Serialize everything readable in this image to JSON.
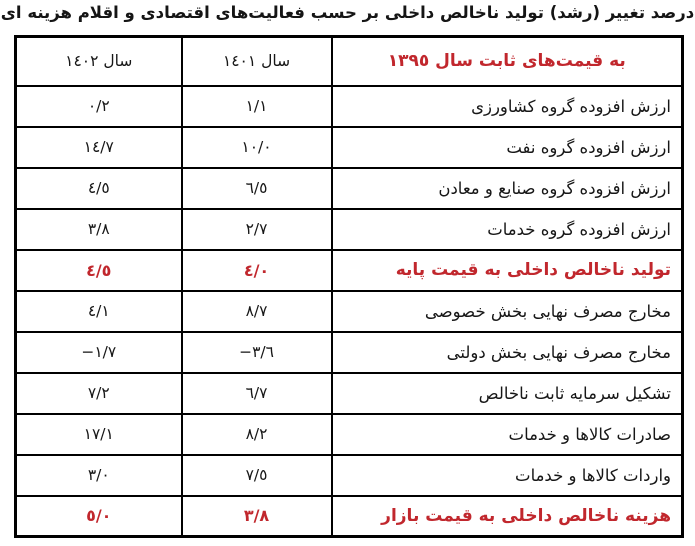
{
  "title": "درصد تغییر (رشد) تولید ناخالص داخلی بر حسب فعالیت‌های اقتصادی و اقلام هزینه ای",
  "colors": {
    "accent_red": "#c1272d",
    "text_black": "#171717",
    "border_black": "#000000",
    "background": "#ffffff"
  },
  "table": {
    "header": {
      "label": "به قیمت‌های ثابت سال ١٣٩٥",
      "col_1401": "سال ١٤٠١",
      "col_1402": "سال ١٤٠٢"
    },
    "rows": [
      {
        "label": "ارزش افزوده گروه کشاورزی",
        "y1401": "١/١",
        "y1402": "٠/٢",
        "emphasis": false
      },
      {
        "label": "ارزش افزوده گروه نفت",
        "y1401": "١٠/٠",
        "y1402": "١٤/٧",
        "emphasis": false
      },
      {
        "label": "ارزش افزوده گروه صنایع و معادن",
        "y1401": "٦/٥",
        "y1402": "٤/٥",
        "emphasis": false
      },
      {
        "label": "ارزش افزوده گروه خدمات",
        "y1401": "٢/٧",
        "y1402": "٣/٨",
        "emphasis": false
      },
      {
        "label": "تولید ناخالص داخلی به قیمت پایه",
        "y1401": "٤/٠",
        "y1402": "٤/٥",
        "emphasis": true
      },
      {
        "label": "مخارج مصرف نهایی بخش خصوصی",
        "y1401": "٨/٧",
        "y1402": "٤/١",
        "emphasis": false
      },
      {
        "label": "مخارج مصرف نهایی بخش دولتی",
        "y1401": "−٣/٦",
        "y1402": "−١/٧",
        "emphasis": false
      },
      {
        "label": "تشکیل سرمایه ثابت ناخالص",
        "y1401": "٦/٧",
        "y1402": "٧/٢",
        "emphasis": false
      },
      {
        "label": "صادرات کالاها و خدمات",
        "y1401": "٨/٢",
        "y1402": "١٧/١",
        "emphasis": false
      },
      {
        "label": "واردات کالاها و خدمات",
        "y1401": "٧/٥",
        "y1402": "٣/٠",
        "emphasis": false
      },
      {
        "label": "هزینه ناخالص داخلی به قیمت بازار",
        "y1401": "٣/٨",
        "y1402": "٥/٠",
        "emphasis": true
      }
    ]
  },
  "chart_data": {
    "type": "table",
    "title": "درصد تغییر (رشد) تولید ناخالص داخلی بر حسب فعالیت‌های اقتصادی و اقلام هزینه ای",
    "columns": [
      "به قیمت‌های ثابت سال ۱۳۹۵",
      "سال ۱۴۰۱",
      "سال ۱۴۰۲"
    ],
    "rows": [
      {
        "label": "ارزش افزوده گروه کشاورزی",
        "year_1401": 1.1,
        "year_1402": 0.2
      },
      {
        "label": "ارزش افزوده گروه نفت",
        "year_1401": 10.0,
        "year_1402": 14.7
      },
      {
        "label": "ارزش افزوده گروه صنایع و معادن",
        "year_1401": 6.5,
        "year_1402": 4.5
      },
      {
        "label": "ارزش افزوده گروه خدمات",
        "year_1401": 2.7,
        "year_1402": 3.8
      },
      {
        "label": "تولید ناخالص داخلی به قیمت پایه",
        "year_1401": 4.0,
        "year_1402": 4.5
      },
      {
        "label": "مخارج مصرف نهایی بخش خصوصی",
        "year_1401": 8.7,
        "year_1402": 4.1
      },
      {
        "label": "مخارج مصرف نهایی بخش دولتی",
        "year_1401": -3.6,
        "year_1402": -1.7
      },
      {
        "label": "تشکیل سرمایه ثابت ناخالص",
        "year_1401": 6.7,
        "year_1402": 7.2
      },
      {
        "label": "صادرات کالاها و خدمات",
        "year_1401": 8.2,
        "year_1402": 17.1
      },
      {
        "label": "واردات کالاها و خدمات",
        "year_1401": 7.5,
        "year_1402": 3.0
      },
      {
        "label": "هزینه ناخالص داخلی به قیمت بازار",
        "year_1401": 3.8,
        "year_1402": 5.0
      }
    ],
    "units": "percent growth",
    "notes": "highlighted_rows_red_bold: [4, 10]; header row red bold"
  }
}
